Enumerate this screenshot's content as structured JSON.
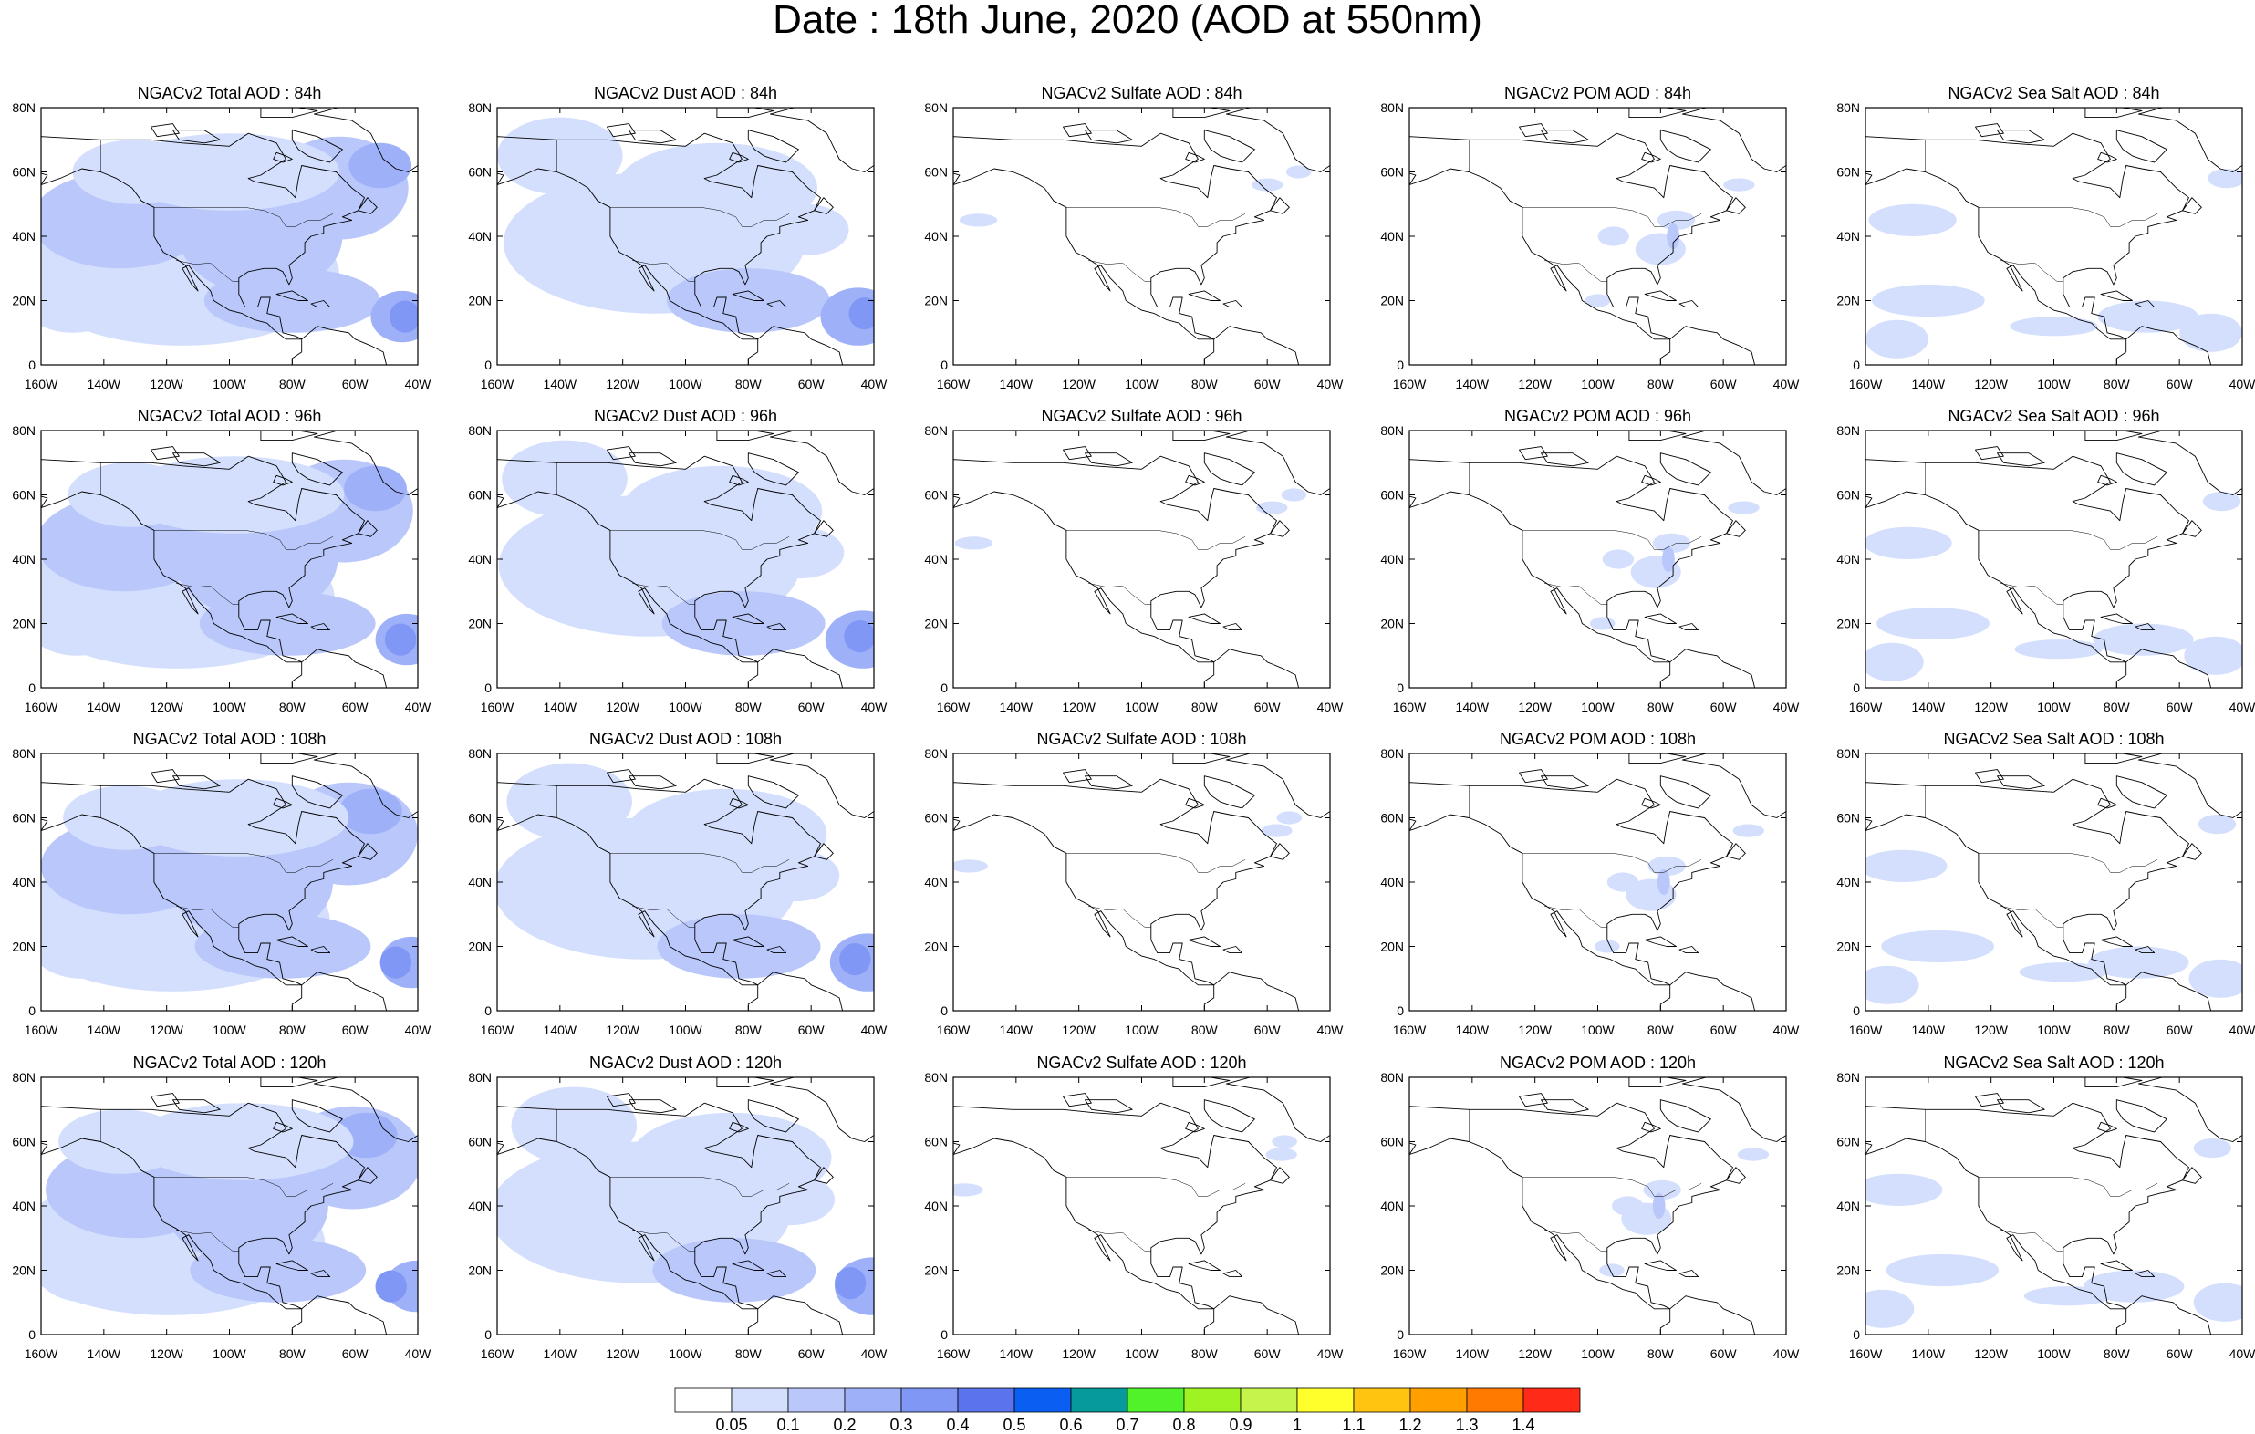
{
  "title": "Date : 18th June, 2020 (AOD at 550nm)",
  "panel_grid": {
    "rows": [
      "84h",
      "96h",
      "108h",
      "120h"
    ],
    "columns": [
      "NGACv2 Total AOD",
      "NGACv2 Dust AOD",
      "NGACv2 Sulfate AOD",
      "NGACv2 POM AOD",
      "NGACv2 Sea Salt AOD"
    ]
  },
  "panels": [
    {
      "title": "NGACv2 Total AOD : 84h",
      "field": "total",
      "lead": "84h"
    },
    {
      "title": "NGACv2 Dust AOD : 84h",
      "field": "dust",
      "lead": "84h"
    },
    {
      "title": "NGACv2 Sulfate AOD : 84h",
      "field": "sulfate",
      "lead": "84h"
    },
    {
      "title": "NGACv2 POM AOD : 84h",
      "field": "pom",
      "lead": "84h"
    },
    {
      "title": "NGACv2 Sea Salt AOD : 84h",
      "field": "seasalt",
      "lead": "84h"
    },
    {
      "title": "NGACv2 Total AOD : 96h",
      "field": "total",
      "lead": "96h"
    },
    {
      "title": "NGACv2 Dust AOD : 96h",
      "field": "dust",
      "lead": "96h"
    },
    {
      "title": "NGACv2 Sulfate AOD : 96h",
      "field": "sulfate",
      "lead": "96h"
    },
    {
      "title": "NGACv2 POM AOD : 96h",
      "field": "pom",
      "lead": "96h"
    },
    {
      "title": "NGACv2 Sea Salt AOD : 96h",
      "field": "seasalt",
      "lead": "96h"
    },
    {
      "title": "NGACv2 Total AOD : 108h",
      "field": "total",
      "lead": "108h"
    },
    {
      "title": "NGACv2 Dust AOD : 108h",
      "field": "dust",
      "lead": "108h"
    },
    {
      "title": "NGACv2 Sulfate AOD : 108h",
      "field": "sulfate",
      "lead": "108h"
    },
    {
      "title": "NGACv2 POM AOD : 108h",
      "field": "pom",
      "lead": "108h"
    },
    {
      "title": "NGACv2 Sea Salt AOD : 108h",
      "field": "seasalt",
      "lead": "108h"
    },
    {
      "title": "NGACv2 Total AOD : 120h",
      "field": "total",
      "lead": "120h"
    },
    {
      "title": "NGACv2 Dust AOD : 120h",
      "field": "dust",
      "lead": "120h"
    },
    {
      "title": "NGACv2 Sulfate AOD : 120h",
      "field": "sulfate",
      "lead": "120h"
    },
    {
      "title": "NGACv2 POM AOD : 120h",
      "field": "pom",
      "lead": "120h"
    },
    {
      "title": "NGACv2 Sea Salt  AOD : 120h",
      "field": "seasalt",
      "lead": "120h"
    }
  ],
  "map_axes": {
    "lon_ticks": [
      "160W",
      "140W",
      "120W",
      "100W",
      "80W",
      "60W",
      "40W"
    ],
    "lat_ticks": [
      "0",
      "20N",
      "40N",
      "60N",
      "80N"
    ],
    "lon_range": [
      -160,
      -40
    ],
    "lat_range": [
      0,
      80
    ]
  },
  "colorbar": {
    "labels": [
      "0.05",
      "0.1",
      "0.2",
      "0.3",
      "0.4",
      "0.5",
      "0.6",
      "0.7",
      "0.8",
      "0.9",
      "1",
      "1.1",
      "1.2",
      "1.3",
      "1.4"
    ],
    "colors": [
      "#ffffff",
      "#d4dffd",
      "#b9c7fb",
      "#9eb1f8",
      "#8097f6",
      "#5c73ee",
      "#0a5ff2",
      "#079a9c",
      "#52f22b",
      "#a0f323",
      "#c7f44b",
      "#ffff2c",
      "#ffc40f",
      "#ffa000",
      "#ff7a00",
      "#ff2a18"
    ]
  },
  "field_levels": {
    "total": "AOD mostly 0.1-0.3, up to 0.4-0.5 near 15-20N 45W (Saharan dust) and NE Canada",
    "dust": "AOD 0.1-0.2 broadly, up to 0.3-0.4 in Caribbean/eastern Atlantic",
    "sulfate": "AOD mostly below 0.05, isolated 0.05-0.1 patches",
    "pom": "AOD mostly below 0.05, patches 0.05-0.2 over eastern US",
    "seasalt": "AOD mostly below 0.1, bands 0.1-0.2 over NE Pacific"
  }
}
